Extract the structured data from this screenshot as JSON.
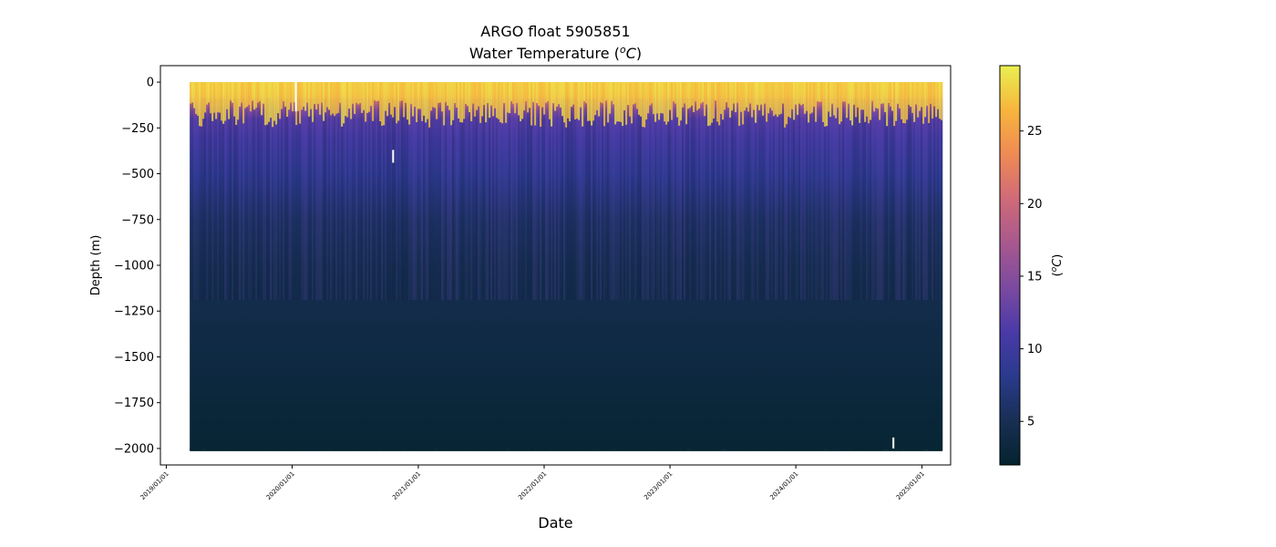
{
  "chart_data": {
    "type": "heatmap",
    "title": "ARGO float 5905851",
    "subtitle_prefix": "Water Temperature (",
    "subtitle_var": "o",
    "subtitle_unit": "C",
    "subtitle_suffix": ")",
    "xlabel": "Date",
    "ylabel": "Depth (m)",
    "colorbar_label_prefix": "(",
    "colorbar_label_var": "o",
    "colorbar_label_unit": "C",
    "colorbar_label_suffix": ")",
    "x_range": [
      "2018-12-15",
      "2025-03-25"
    ],
    "y_range": [
      -2090,
      90
    ],
    "data_x_range": [
      "2019-03-10",
      "2025-03-02"
    ],
    "x_ticks": [
      "2019/01/01",
      "2020/01/01",
      "2021/01/01",
      "2022/01/01",
      "2023/01/01",
      "2024/01/01",
      "2025/01/01"
    ],
    "x_tick_dates": [
      "2019-01-01",
      "2020-01-01",
      "2021-01-01",
      "2022-01-01",
      "2023-01-01",
      "2024-01-01",
      "2025-01-01"
    ],
    "y_ticks": [
      0,
      -250,
      -500,
      -750,
      -1000,
      -1250,
      -1500,
      -1750,
      -2000
    ],
    "y_tick_labels": [
      "0",
      "−250",
      "−500",
      "−750",
      "−1000",
      "−1250",
      "−1500",
      "−1750",
      "−2000"
    ],
    "colorbar_range": [
      2,
      29.5
    ],
    "colorbar_ticks": [
      5,
      10,
      15,
      20,
      25
    ],
    "colorbar_tick_labels": [
      "5",
      "10",
      "15",
      "20",
      "25"
    ],
    "colormap": "thermal",
    "colormap_stops": [
      "#04232e",
      "#182f54",
      "#2a3a8c",
      "#4a3aa8",
      "#7b4aa0",
      "#a8588e",
      "#d06a78",
      "#ef8a55",
      "#f7b53c",
      "#eaf050"
    ],
    "temperature_profile": [
      {
        "depth": 0,
        "temp": 27.5
      },
      {
        "depth": -50,
        "temp": 26.5
      },
      {
        "depth": -100,
        "temp": 22.0
      },
      {
        "depth": -150,
        "temp": 15.0
      },
      {
        "depth": -200,
        "temp": 12.0
      },
      {
        "depth": -300,
        "temp": 10.5
      },
      {
        "depth": -500,
        "temp": 8.5
      },
      {
        "depth": -750,
        "temp": 6.0
      },
      {
        "depth": -1000,
        "temp": 4.8
      },
      {
        "depth": -1500,
        "temp": 3.5
      },
      {
        "depth": -2000,
        "temp": 2.5
      }
    ],
    "gaps": [
      {
        "date": "2020-01-12",
        "top": 0,
        "bottom": -160
      },
      {
        "date": "2020-10-20",
        "top": -370,
        "bottom": -440
      },
      {
        "date": "2024-10-10",
        "top": -1940,
        "bottom": -2000
      }
    ]
  }
}
